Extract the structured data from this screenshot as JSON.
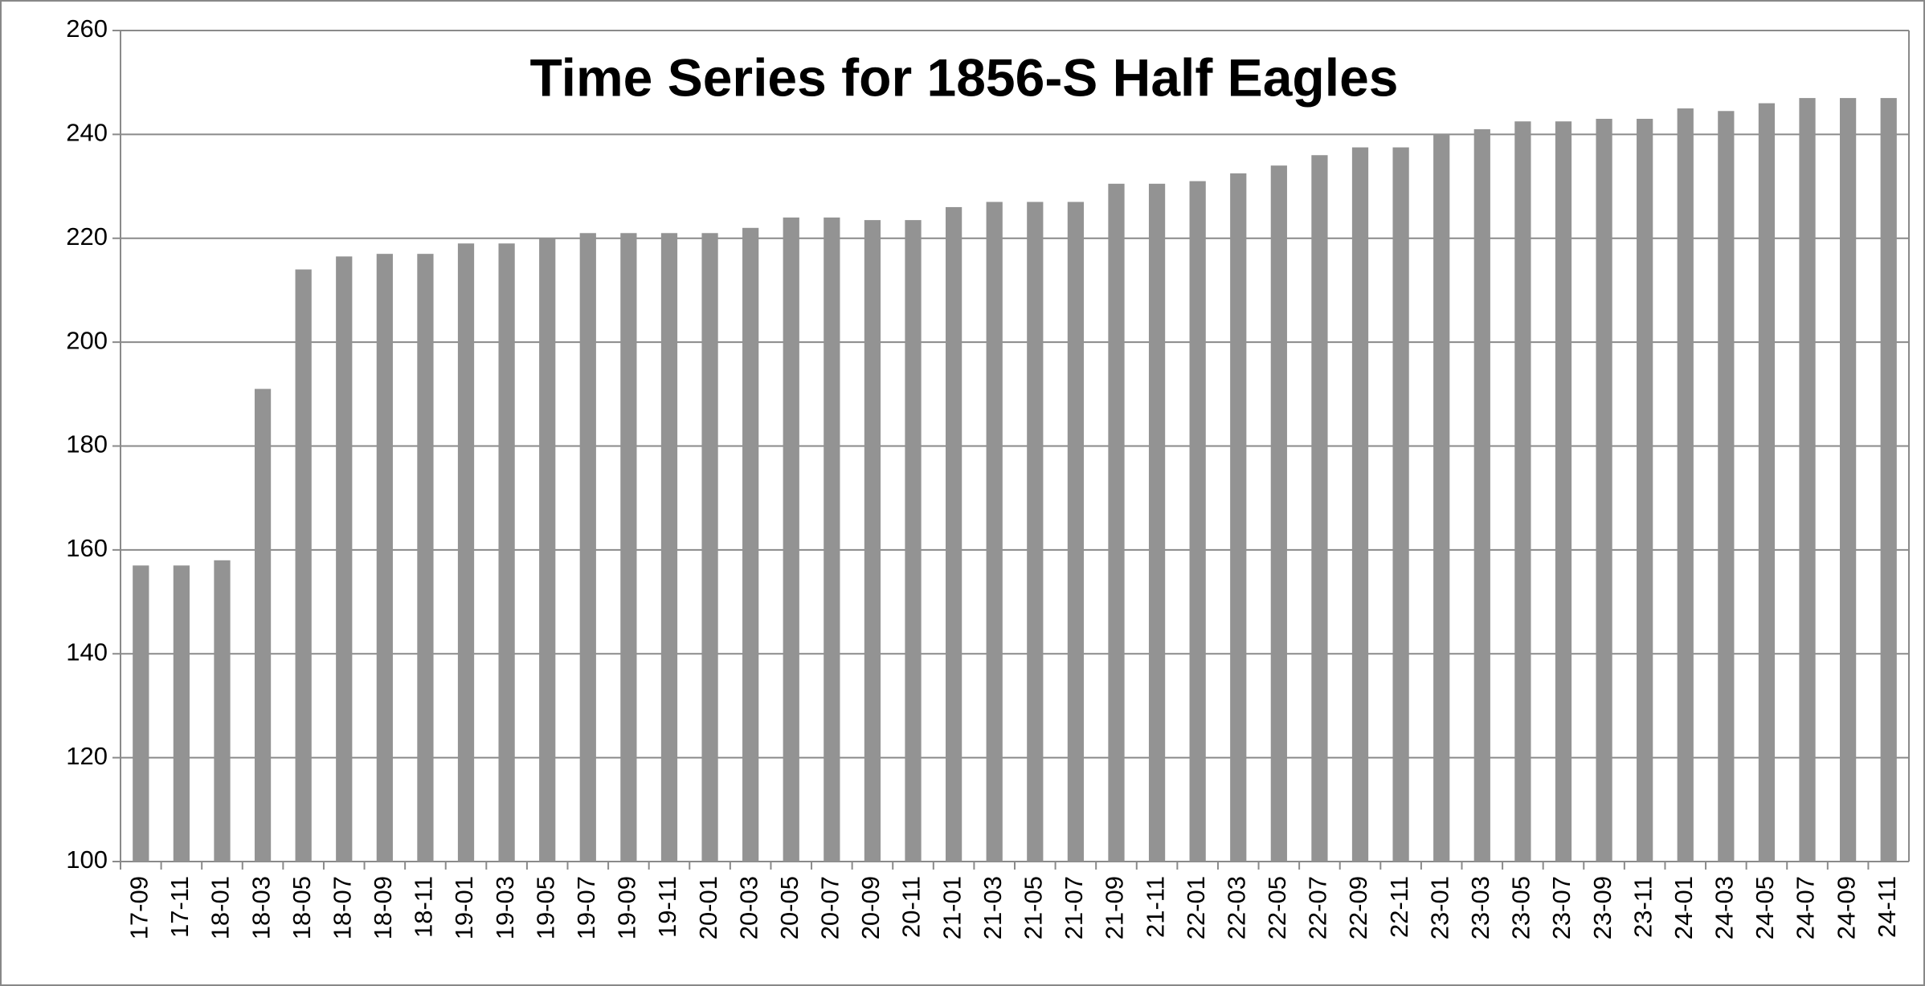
{
  "chart_data": {
    "type": "bar",
    "title": "Time Series for 1856-S Half Eagles",
    "categories": [
      "17-09",
      "17-11",
      "18-01",
      "18-03",
      "18-05",
      "18-07",
      "18-09",
      "18-11",
      "19-01",
      "19-03",
      "19-05",
      "19-07",
      "19-09",
      "19-11",
      "20-01",
      "20-03",
      "20-05",
      "20-07",
      "20-09",
      "20-11",
      "21-01",
      "21-03",
      "21-05",
      "21-07",
      "21-09",
      "21-11",
      "22-01",
      "22-03",
      "22-05",
      "22-07",
      "22-09",
      "22-11",
      "23-01",
      "23-03",
      "23-05",
      "23-07",
      "23-09",
      "23-11",
      "24-01",
      "24-03",
      "24-05",
      "24-07",
      "24-09",
      "24-11"
    ],
    "values": [
      157,
      157,
      158,
      191,
      214,
      216.5,
      217,
      217,
      219,
      219,
      220,
      221,
      221,
      221,
      221,
      222,
      224,
      224,
      223.5,
      223.5,
      226,
      227,
      227,
      227,
      230.5,
      230.5,
      231,
      232.5,
      234,
      236,
      237.5,
      237.5,
      240,
      241,
      242.5,
      242.5,
      243,
      243,
      245,
      244.5,
      246,
      247,
      247,
      247
    ],
    "color": "#939393",
    "ylim": [
      100,
      260
    ],
    "yticks": [
      100,
      120,
      140,
      160,
      180,
      200,
      220,
      240,
      260
    ],
    "grid": true
  }
}
